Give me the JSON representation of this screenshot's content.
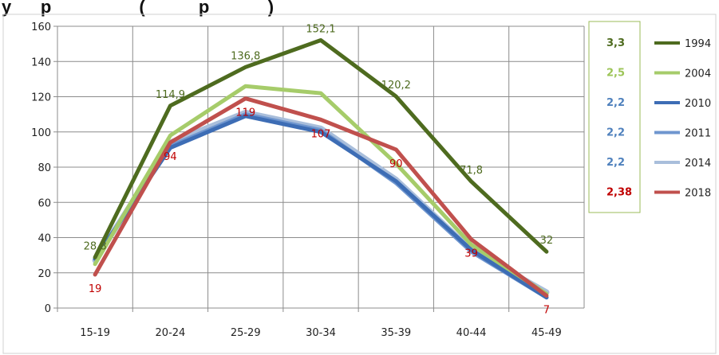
{
  "chart_data": {
    "type": "line",
    "title_fragment": "y      p                  (           p            )",
    "categories": [
      "15-19",
      "20-24",
      "25-29",
      "30-34",
      "35-39",
      "40-44",
      "45-49"
    ],
    "ylim": [
      0,
      160
    ],
    "yticks": [
      0,
      20,
      40,
      60,
      80,
      100,
      120,
      140,
      160
    ],
    "grid": true,
    "legend_position": "right",
    "series": [
      {
        "name": "1994",
        "color": "#4e6b1f",
        "values": [
          28.8,
          114.9,
          136.8,
          152.1,
          120.2,
          71.8,
          32
        ],
        "labels": [
          "28,8",
          "114,9",
          "136,8",
          "152,1",
          "120,2",
          "71,8",
          "32"
        ],
        "label_color": "#4e6b1f",
        "tfr": "3,3"
      },
      {
        "name": "2004",
        "color": "#a6cc6a",
        "values": [
          25,
          98,
          126,
          122,
          82,
          36,
          8
        ],
        "tfr": "2,5"
      },
      {
        "name": "2010",
        "color": "#3d6db5",
        "values": [
          28,
          91,
          109,
          100,
          72,
          33,
          6
        ],
        "tfr": "2,2"
      },
      {
        "name": "2011",
        "color": "#6f96cf",
        "values": [
          28,
          92,
          110,
          101,
          71,
          32,
          6
        ],
        "tfr": "2,2"
      },
      {
        "name": "2014",
        "color": "#a9bedb",
        "values": [
          27,
          94,
          111,
          102,
          73,
          33,
          9
        ],
        "tfr": "2,2"
      },
      {
        "name": "2018",
        "color": "#c0504d",
        "values": [
          19,
          94,
          119,
          107,
          90,
          39,
          7
        ],
        "labels": [
          "19",
          "94",
          "119",
          "107",
          "90",
          "39",
          "7"
        ],
        "label_color": "#c00000",
        "tfr": "2,38"
      }
    ],
    "tfr_colors": [
      "#4e6b1f",
      "#9dc558",
      "#4f81bd",
      "#4f81bd",
      "#4f81bd",
      "#c00000"
    ],
    "tfr_box_border": "#9bbb59"
  }
}
